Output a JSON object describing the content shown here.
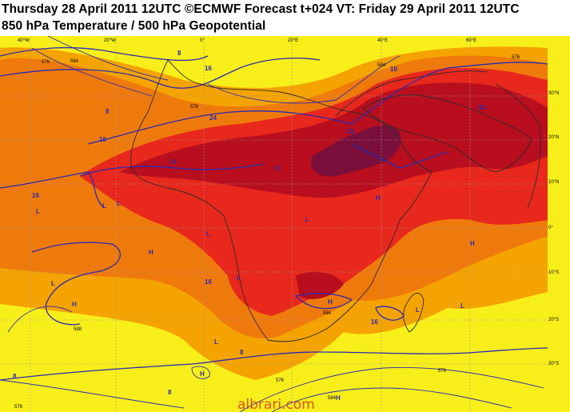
{
  "header": {
    "line1": "Thursday 28 April 2011 12UTC ©ECMWF Forecast t+024 VT: Friday 29 April 2011 12UTC",
    "line2": "850 hPa Temperature / 500 hPa Geopotential"
  },
  "map": {
    "top_ticks": [
      "40°W",
      "20°W",
      "0°",
      "20°E",
      "40°E",
      "60°E"
    ],
    "right_ticks": [
      "30°N",
      "20°N",
      "10°N",
      "0°",
      "10°S",
      "20°S",
      "30°S"
    ],
    "contour_labels": [
      "8",
      "16",
      "16",
      "8",
      "24",
      "24",
      "16",
      "16",
      "16",
      "24",
      "576",
      "584",
      "576",
      "584",
      "576",
      "588",
      "584",
      "576",
      "8",
      "8",
      "576",
      "584",
      "576",
      "8",
      "16"
    ],
    "pressure_centers": [
      "L",
      "H",
      "H",
      "L",
      "L",
      "L",
      "H",
      "H",
      "L",
      "H",
      "L",
      "H",
      "L",
      "L",
      "L",
      "H",
      "L",
      "H",
      "H"
    ],
    "colors": {
      "ocean_yellow": "#f8ef1a",
      "warm_orange": "#f5a300",
      "hot_orange": "#ef7a0c",
      "red": "#e8281c",
      "dark_red": "#b80e1e",
      "maroon": "#7a0f3c",
      "contour_blue": "#2a2ab0",
      "coastline": "#2b2b2b"
    },
    "watermark": "albrari.com"
  }
}
